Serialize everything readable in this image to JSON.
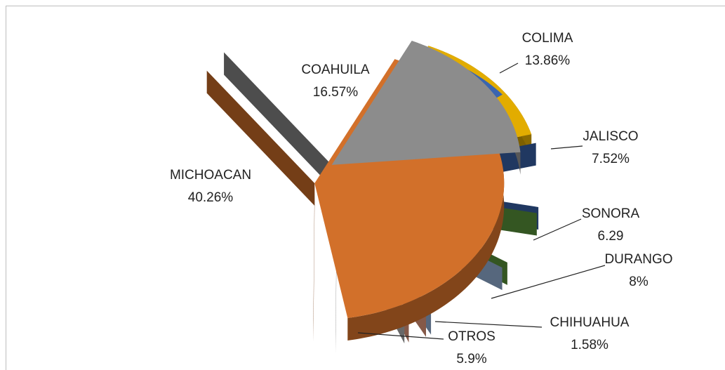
{
  "chart_data": {
    "type": "pie3d",
    "categories": [
      "COLIMA",
      "JALISCO",
      "SONORA",
      "DURANGO",
      "CHIHUAHUA",
      "OTROS",
      "MICHOACAN",
      "COAHUILA"
    ],
    "values": [
      13.86,
      7.52,
      6.29,
      8,
      1.58,
      5.9,
      40.26,
      16.57
    ],
    "value_labels": [
      "13.86%",
      "7.52%",
      "6.29",
      "8%",
      "1.58%",
      "5.9%",
      "40.26%",
      "16.57%"
    ],
    "colors": [
      "#e2ac00",
      "#3a65b0",
      "#5f9c3e",
      "#9cbbe3",
      "#f2a283",
      "#bdbdbd",
      "#d2702a",
      "#8c8c8c"
    ]
  }
}
